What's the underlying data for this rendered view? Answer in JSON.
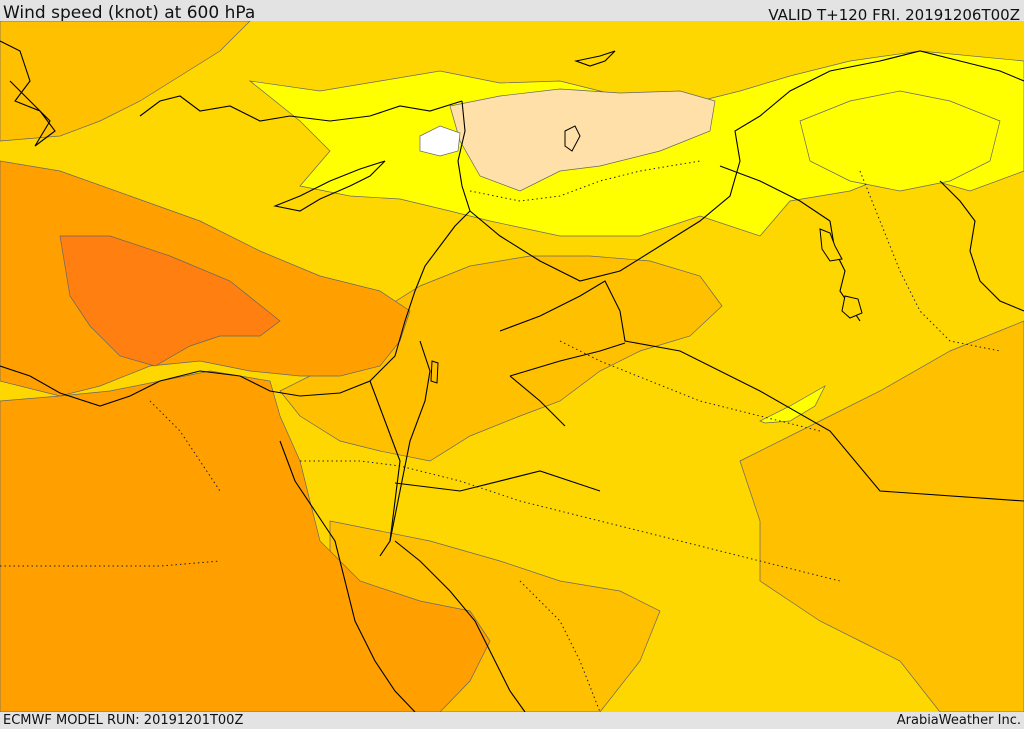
{
  "header": {
    "title": "Wind speed (knot) at 600 hPa",
    "valid": "VALID T+120 FRI. 20191206T00Z"
  },
  "footer": {
    "model_run": "ECMWF MODEL RUN: 20191201T00Z",
    "credit": "ArabiaWeather Inc."
  },
  "map": {
    "colors": {
      "background": "#FFD700",
      "level_low": "#FFFF00",
      "level_very_low": "#FFE0A8",
      "level_lowest": "#FFFFFF",
      "level_mid": "#FFC000",
      "level_high": "#FFA000",
      "level_very_high": "#FF7F10",
      "coastline": "#000000",
      "contour": "#555555"
    }
  }
}
